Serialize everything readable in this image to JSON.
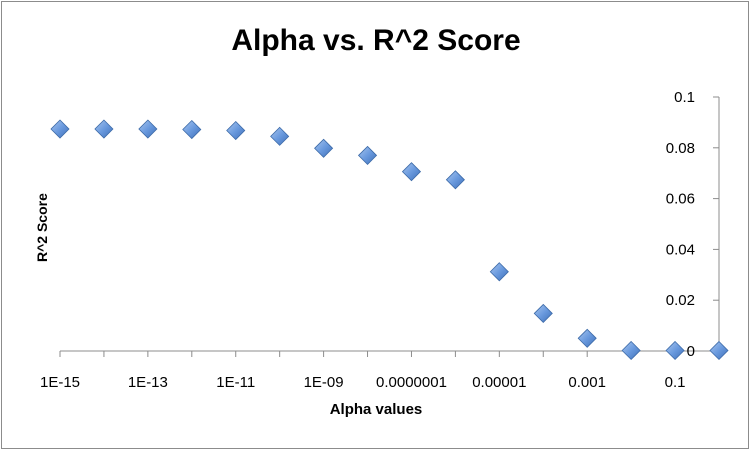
{
  "chart_data": {
    "type": "scatter",
    "title": "Alpha vs. R^2 Score",
    "xlabel": "Alpha values",
    "ylabel": "R^2 Score",
    "x_scale": "log",
    "x": [
      1e-15,
      1e-14,
      1e-13,
      1e-12,
      1e-11,
      1e-10,
      1e-09,
      1e-08,
      1e-07,
      1e-06,
      1e-05,
      0.0001,
      0.001,
      0.01,
      0.1,
      1
    ],
    "y": [
      0.0874,
      0.0874,
      0.0874,
      0.0872,
      0.0868,
      0.0845,
      0.0798,
      0.077,
      0.0706,
      0.0674,
      0.0312,
      0.0148,
      0.005,
      0.0002,
      0.0002,
      0.0002
    ],
    "xtick_labels": [
      "1E-15",
      "1E-13",
      "1E-11",
      "1E-09",
      "0.0000001",
      "0.00001",
      "0.001",
      "0.1"
    ],
    "ytick_labels": [
      "0",
      "0.02",
      "0.04",
      "0.06",
      "0.08",
      "0.1"
    ],
    "ylim": [
      0,
      0.1
    ],
    "xlim": [
      1e-15,
      1
    ],
    "y_axis_position": "right",
    "grid": false,
    "legend": "none",
    "marker": "diamond",
    "marker_color": "#4f81bd"
  }
}
